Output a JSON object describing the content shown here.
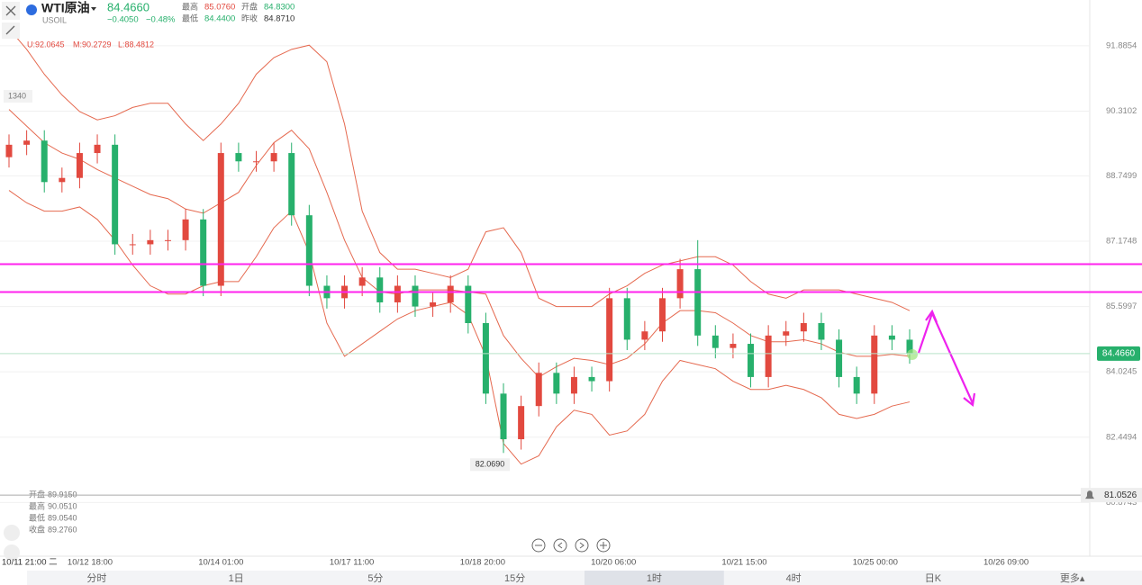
{
  "header": {
    "name": "WTI原油",
    "symbol": "USOIL",
    "price": "84.4660",
    "change": "−0.4050",
    "change_pct": "−0.48%",
    "stats": [
      {
        "label": "最高",
        "value": "85.0760"
      },
      {
        "label": "开盘",
        "value": "84.8300"
      },
      {
        "label": "最低",
        "value": "84.4400"
      },
      {
        "label": "昨收",
        "value": "84.8710"
      }
    ],
    "indicator": [
      "U:92.0645",
      "M:90.2729",
      "L:88.4812"
    ],
    "side_label": "1340"
  },
  "crosshair": {
    "label": "10/11 21:00 二",
    "ohlc": [
      {
        "label": "开盘",
        "value": "89.9150"
      },
      {
        "label": "最高",
        "value": "90.0510"
      },
      {
        "label": "最低",
        "value": "89.0540"
      },
      {
        "label": "收盘",
        "value": "89.2760"
      }
    ]
  },
  "tabs": {
    "items": [
      "分时",
      "1日",
      "5分",
      "15分",
      "1时",
      "4时",
      "日K",
      "更多▴"
    ],
    "selected": "1时"
  },
  "chart_data": {
    "type": "candlestick",
    "up_color": "#e2493f",
    "down_color": "#27b06c",
    "open": [
      89.2,
      89.5,
      89.6,
      88.6,
      88.7,
      89.3,
      89.5,
      87.1,
      87.1,
      87.2,
      87.2,
      87.7,
      86.1,
      89.3,
      89.1,
      89.1,
      89.3,
      87.8,
      86.1,
      85.8,
      86.1,
      86.3,
      85.7,
      86.1,
      85.6,
      85.7,
      86.1,
      85.2,
      83.5,
      82.4,
      83.2,
      84.0,
      83.5,
      83.9,
      83.8,
      85.8,
      84.8,
      85.0,
      85.8,
      86.5,
      84.9,
      84.6,
      84.7,
      83.9,
      84.9,
      85.0,
      85.2,
      84.8,
      83.9,
      83.5,
      84.9,
      84.8
    ],
    "high": [
      89.75,
      89.85,
      89.85,
      88.95,
      89.55,
      89.75,
      89.75,
      87.35,
      87.45,
      87.45,
      87.95,
      87.95,
      89.55,
      89.55,
      89.35,
      89.55,
      89.55,
      88.05,
      86.35,
      86.35,
      86.55,
      86.55,
      86.35,
      86.35,
      85.95,
      86.35,
      86.35,
      85.45,
      83.75,
      83.45,
      84.25,
      84.25,
      84.15,
      84.15,
      86.05,
      86.05,
      85.25,
      86.05,
      86.75,
      87.2,
      85.15,
      84.95,
      84.95,
      85.15,
      85.25,
      85.45,
      85.45,
      85.05,
      84.15,
      85.15,
      85.15,
      85.05
    ],
    "low": [
      88.95,
      89.25,
      88.35,
      88.35,
      88.45,
      89.05,
      86.85,
      86.85,
      86.85,
      86.95,
      86.95,
      85.85,
      85.85,
      88.85,
      88.85,
      88.85,
      87.55,
      85.85,
      85.55,
      85.55,
      85.85,
      85.45,
      85.45,
      85.35,
      85.35,
      85.45,
      84.95,
      83.25,
      82.069,
      82.15,
      82.95,
      83.25,
      83.25,
      83.55,
      83.55,
      84.55,
      84.55,
      84.75,
      85.55,
      84.65,
      84.35,
      84.35,
      83.65,
      83.65,
      84.65,
      84.75,
      84.55,
      83.65,
      83.25,
      83.25,
      84.55,
      84.22
    ],
    "close": [
      89.5,
      89.6,
      88.6,
      88.7,
      89.3,
      89.5,
      87.1,
      87.1,
      87.2,
      87.2,
      87.7,
      86.1,
      89.3,
      89.1,
      89.1,
      89.3,
      87.8,
      86.1,
      85.8,
      86.1,
      86.3,
      85.7,
      86.1,
      85.6,
      85.7,
      86.1,
      85.2,
      83.5,
      82.4,
      83.2,
      84.0,
      83.5,
      83.9,
      83.8,
      85.8,
      84.8,
      85.0,
      85.8,
      86.5,
      84.9,
      84.6,
      84.7,
      83.9,
      84.9,
      85.0,
      85.2,
      84.8,
      83.9,
      83.5,
      84.9,
      84.8,
      84.466
    ],
    "series": [
      {
        "name": "U",
        "color": "#e5694f",
        "values": [
          92.3,
          91.8,
          91.2,
          90.7,
          90.3,
          90.1,
          90.2,
          90.4,
          90.5,
          90.5,
          90.0,
          89.6,
          90.0,
          90.5,
          91.2,
          91.6,
          91.8,
          91.9,
          91.5,
          90.0,
          87.9,
          86.9,
          86.5,
          86.5,
          86.4,
          86.3,
          86.5,
          87.4,
          87.5,
          86.9,
          85.8,
          85.6,
          85.6,
          85.6,
          85.9,
          86.1,
          86.4,
          86.6,
          86.7,
          86.8,
          86.8,
          86.6,
          86.2,
          85.9,
          85.8,
          86.0,
          86.0,
          86.0,
          85.9,
          85.8,
          85.7,
          85.5
        ]
      },
      {
        "name": "M",
        "color": "#e5694f",
        "values": [
          90.35,
          89.95,
          89.55,
          89.3,
          89.15,
          88.9,
          88.7,
          88.5,
          88.3,
          88.2,
          87.95,
          87.85,
          88.1,
          88.35,
          89.0,
          89.55,
          89.85,
          89.4,
          88.35,
          87.2,
          86.3,
          85.95,
          85.9,
          86.0,
          86.0,
          86.0,
          85.95,
          85.9,
          84.9,
          84.35,
          83.9,
          84.15,
          84.35,
          84.3,
          84.2,
          84.35,
          84.7,
          85.2,
          85.5,
          85.5,
          85.45,
          85.2,
          84.9,
          84.75,
          84.75,
          84.8,
          84.7,
          84.5,
          84.4,
          84.4,
          84.45,
          84.4
        ]
      },
      {
        "name": "L",
        "color": "#e5694f",
        "values": [
          88.4,
          88.1,
          87.9,
          87.9,
          88.0,
          87.7,
          87.2,
          86.6,
          86.1,
          85.9,
          85.9,
          86.1,
          86.2,
          86.2,
          86.8,
          87.5,
          87.9,
          86.9,
          85.2,
          84.4,
          84.7,
          85.0,
          85.3,
          85.5,
          85.6,
          85.7,
          85.4,
          84.4,
          82.3,
          81.8,
          82.0,
          82.7,
          83.1,
          83.0,
          82.5,
          82.6,
          83.0,
          83.8,
          84.3,
          84.2,
          84.1,
          83.8,
          83.6,
          83.6,
          83.7,
          83.6,
          83.4,
          83.0,
          82.9,
          83.0,
          83.2,
          83.3
        ]
      }
    ],
    "ylim": [
      79.58,
      92.99
    ],
    "yticks": [
      91.8854,
      90.3102,
      88.7499,
      87.1748,
      85.5997,
      84.0245,
      82.4494,
      80.8743
    ],
    "x_labels": [
      "10/12 18:00",
      "10/14 01:00",
      "10/17 11:00",
      "10/18 20:00",
      "10/20 06:00",
      "10/21 15:00",
      "10/25 00:00",
      "10/26 09:00"
    ],
    "hlines": {
      "color": "#ff22ee",
      "values": [
        86.62,
        85.95
      ]
    },
    "current_price": {
      "value": 84.466,
      "label": "84.4660",
      "color": "#27b06c"
    },
    "alert": {
      "value": 81.0526
    },
    "min_marker": {
      "value": 82.069,
      "label": "82.0690"
    }
  }
}
